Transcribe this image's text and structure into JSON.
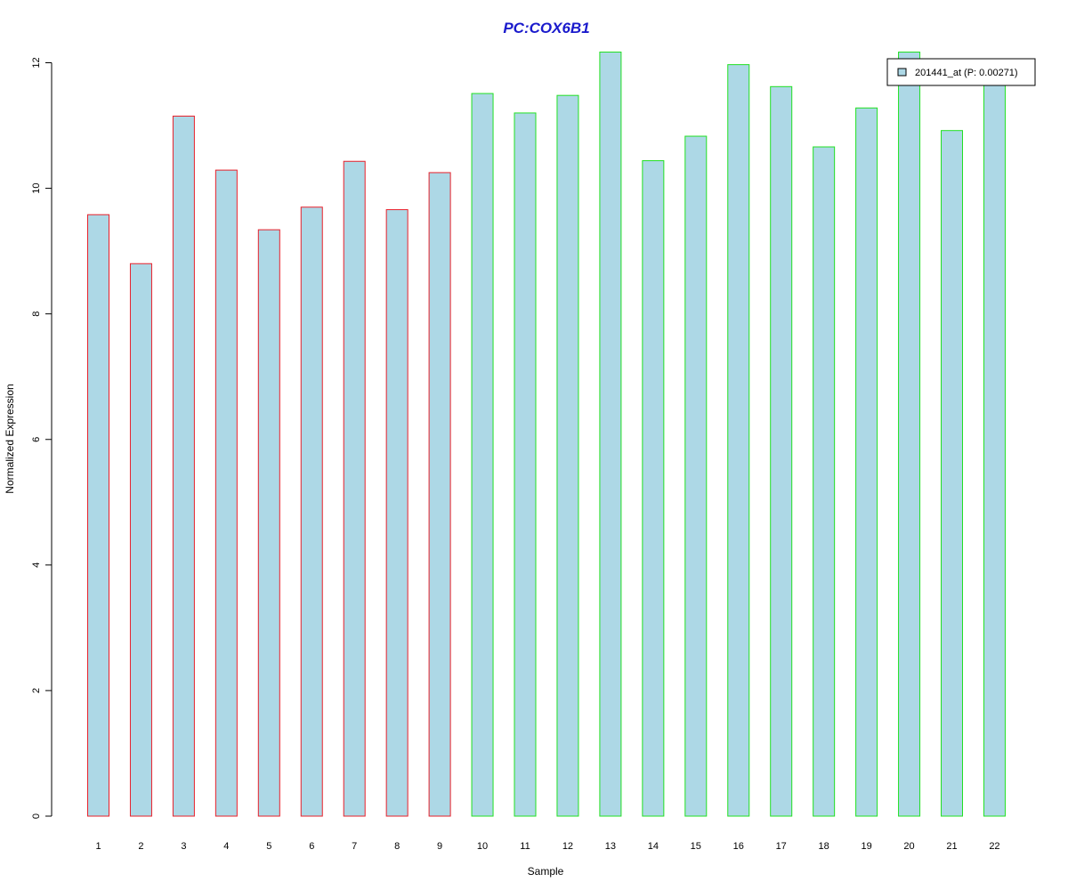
{
  "chart_data": {
    "type": "bar",
    "title": "PC:COX6B1",
    "xlabel": "Sample",
    "ylabel": "Normalized Expression",
    "categories": [
      "1",
      "2",
      "3",
      "4",
      "5",
      "6",
      "7",
      "8",
      "9",
      "10",
      "11",
      "12",
      "13",
      "14",
      "15",
      "16",
      "17",
      "18",
      "19",
      "20",
      "21",
      "22"
    ],
    "series": [
      {
        "name": "201441_at (P: 0.00271)",
        "values": [
          9.58,
          8.8,
          11.15,
          10.29,
          9.34,
          9.7,
          10.43,
          9.66,
          10.25,
          11.51,
          11.2,
          11.48,
          12.17,
          10.44,
          10.83,
          11.97,
          11.62,
          10.66,
          11.28,
          12.17,
          10.92,
          11.77
        ]
      }
    ],
    "groups": [
      {
        "samples": [
          "1",
          "2",
          "3",
          "4",
          "5",
          "6",
          "7",
          "8",
          "9"
        ],
        "border_color": "#e8202a"
      },
      {
        "samples": [
          "10",
          "11",
          "12",
          "13",
          "14",
          "15",
          "16",
          "17",
          "18",
          "19",
          "20",
          "21",
          "22"
        ],
        "border_color": "#22e022"
      }
    ],
    "ylim": [
      0,
      12
    ],
    "yticks": [
      0,
      2,
      4,
      6,
      8,
      10,
      12
    ],
    "fill_color": "#add8e6",
    "title_color": "#1a1acc",
    "legend_position": "top-right",
    "grid": false
  }
}
